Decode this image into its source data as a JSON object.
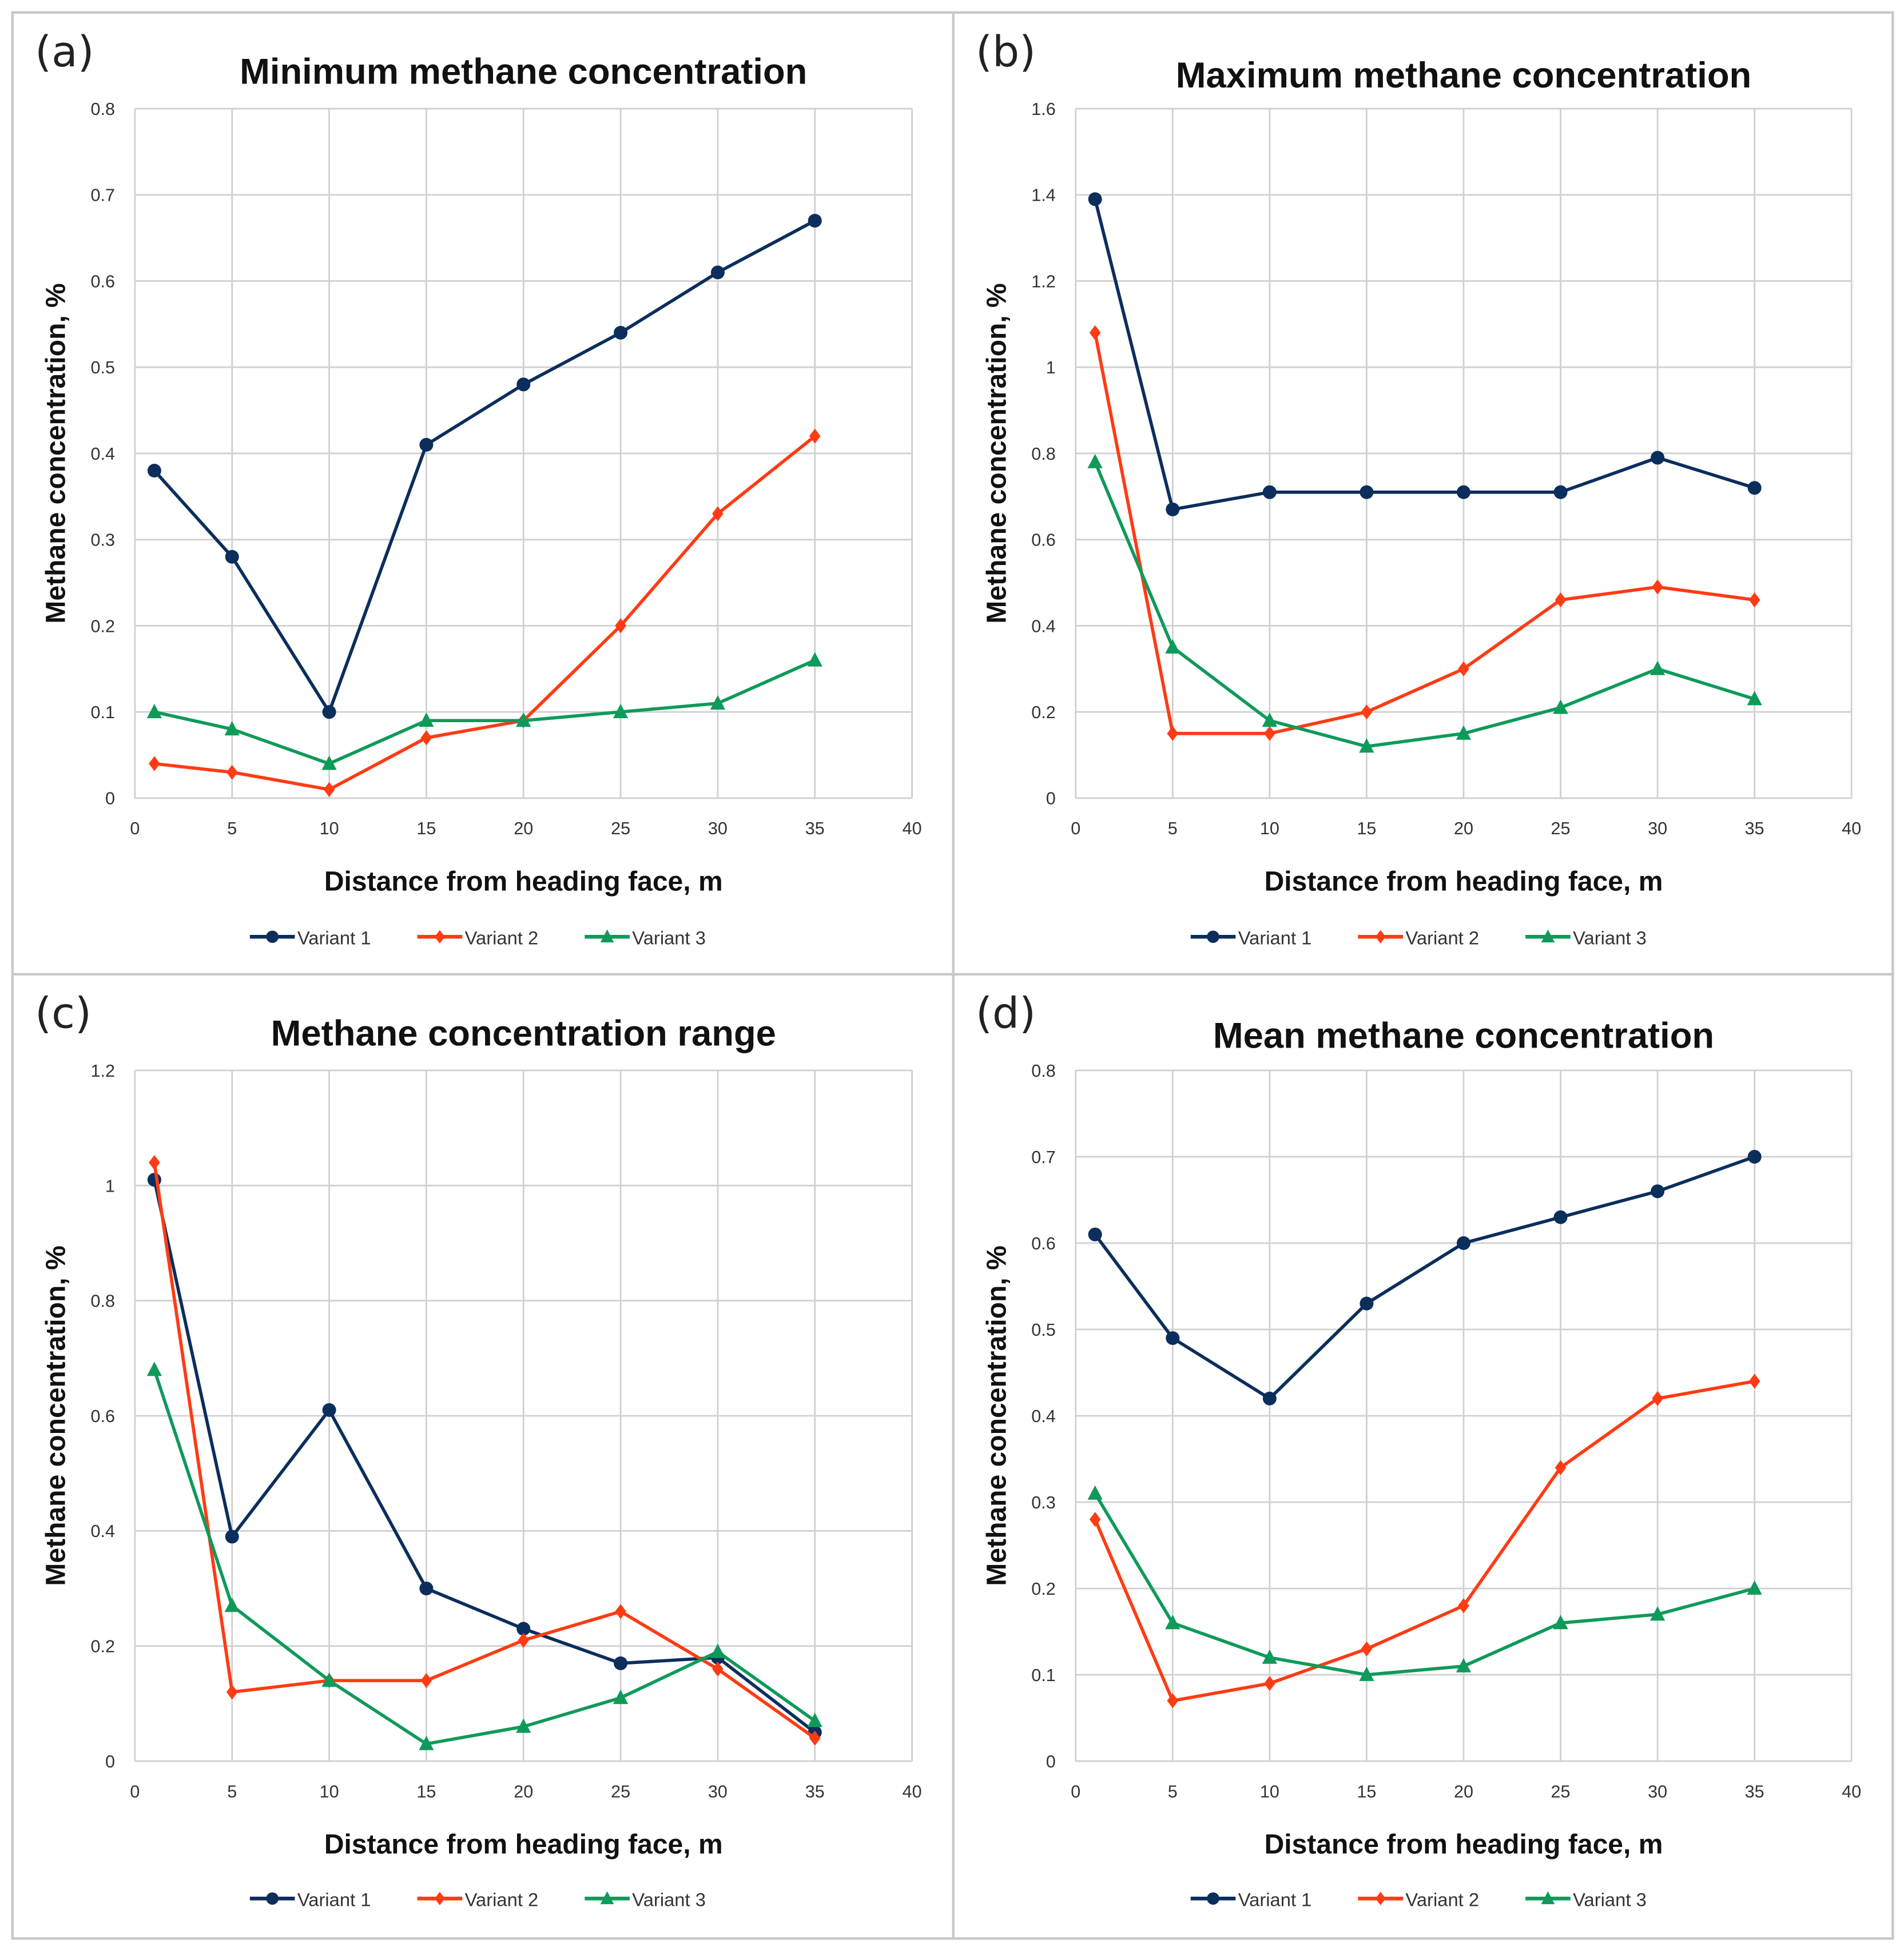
{
  "colors": {
    "Variant 1": "#0b2e5c",
    "Variant 2": "#ff3b14",
    "Variant 3": "#0f9a5a",
    "grid": "#d0d0d0",
    "border": "#c8c8c8"
  },
  "chart_data": [
    {
      "panel_label": "(a)",
      "type": "line",
      "title": "Minimum methane concentration",
      "xlabel": "Distance from heading face, m",
      "ylabel": "Methane concentration, %",
      "xlim": [
        0,
        40
      ],
      "ylim": [
        0,
        0.8
      ],
      "xticks": [
        "0",
        "5",
        "10",
        "15",
        "20",
        "25",
        "30",
        "35",
        "40"
      ],
      "yticks": [
        "0",
        "0.1",
        "0.2",
        "0.3",
        "0.4",
        "0.5",
        "0.6",
        "0.7",
        "0.8"
      ],
      "x": [
        1,
        5,
        10,
        15,
        20,
        25,
        30,
        35
      ],
      "grid": true,
      "legend": "bottom",
      "series": [
        {
          "name": "Variant 1",
          "marker": "circle",
          "values": [
            0.38,
            0.28,
            0.1,
            0.41,
            0.48,
            0.54,
            0.61,
            0.67
          ]
        },
        {
          "name": "Variant 2",
          "marker": "diamond",
          "values": [
            0.04,
            0.03,
            0.01,
            0.07,
            0.09,
            0.2,
            0.33,
            0.42
          ]
        },
        {
          "name": "Variant 3",
          "marker": "triangle",
          "values": [
            0.1,
            0.08,
            0.04,
            0.09,
            0.09,
            0.1,
            0.11,
            0.16
          ]
        }
      ]
    },
    {
      "panel_label": "(b)",
      "type": "line",
      "title": "Maximum methane concentration",
      "xlabel": "Distance from heading face, m",
      "ylabel": "Methane concentration, %",
      "xlim": [
        0,
        40
      ],
      "ylim": [
        0,
        1.6
      ],
      "xticks": [
        "0",
        "5",
        "10",
        "15",
        "20",
        "25",
        "30",
        "35",
        "40"
      ],
      "yticks": [
        "0",
        "0.2",
        "0.4",
        "0.6",
        "0.8",
        "1",
        "1.2",
        "1.4",
        "1.6"
      ],
      "x": [
        1,
        5,
        10,
        15,
        20,
        25,
        30,
        35
      ],
      "grid": true,
      "legend": "bottom",
      "series": [
        {
          "name": "Variant 1",
          "marker": "circle",
          "values": [
            1.39,
            0.67,
            0.71,
            0.71,
            0.71,
            0.71,
            0.79,
            0.72
          ]
        },
        {
          "name": "Variant 2",
          "marker": "diamond",
          "values": [
            1.08,
            0.15,
            0.15,
            0.2,
            0.3,
            0.46,
            0.49,
            0.46
          ]
        },
        {
          "name": "Variant 3",
          "marker": "triangle",
          "values": [
            0.78,
            0.35,
            0.18,
            0.12,
            0.15,
            0.21,
            0.3,
            0.23
          ]
        }
      ]
    },
    {
      "panel_label": "(c)",
      "type": "line",
      "title": "Methane concentration range",
      "xlabel": "Distance from heading face, m",
      "ylabel": "Methane concentration, %",
      "xlim": [
        0,
        40
      ],
      "ylim": [
        0,
        1.2
      ],
      "xticks": [
        "0",
        "5",
        "10",
        "15",
        "20",
        "25",
        "30",
        "35",
        "40"
      ],
      "yticks": [
        "0",
        "0.2",
        "0.4",
        "0.6",
        "0.8",
        "1",
        "1.2"
      ],
      "x": [
        1,
        5,
        10,
        15,
        20,
        25,
        30,
        35
      ],
      "grid": true,
      "legend": "bottom",
      "series": [
        {
          "name": "Variant 1",
          "marker": "circle",
          "values": [
            1.01,
            0.39,
            0.61,
            0.3,
            0.23,
            0.17,
            0.18,
            0.05
          ]
        },
        {
          "name": "Variant 2",
          "marker": "diamond",
          "values": [
            1.04,
            0.12,
            0.14,
            0.14,
            0.21,
            0.26,
            0.16,
            0.04
          ]
        },
        {
          "name": "Variant 3",
          "marker": "triangle",
          "values": [
            0.68,
            0.27,
            0.14,
            0.03,
            0.06,
            0.11,
            0.19,
            0.07
          ]
        }
      ]
    },
    {
      "panel_label": "(d)",
      "type": "line",
      "title": "Mean methane concentration",
      "xlabel": "Distance from heading face, m",
      "ylabel": "Methane concentration, %",
      "xlim": [
        0,
        40
      ],
      "ylim": [
        0,
        0.8
      ],
      "xticks": [
        "0",
        "5",
        "10",
        "15",
        "20",
        "25",
        "30",
        "35",
        "40"
      ],
      "yticks": [
        "0",
        "0.1",
        "0.2",
        "0.3",
        "0.4",
        "0.5",
        "0.6",
        "0.7",
        "0.8"
      ],
      "x": [
        1,
        5,
        10,
        15,
        20,
        25,
        30,
        35
      ],
      "grid": true,
      "legend": "bottom",
      "series": [
        {
          "name": "Variant 1",
          "marker": "circle",
          "values": [
            0.61,
            0.49,
            0.42,
            0.53,
            0.6,
            0.63,
            0.66,
            0.7
          ]
        },
        {
          "name": "Variant 2",
          "marker": "diamond",
          "values": [
            0.28,
            0.07,
            0.09,
            0.13,
            0.18,
            0.34,
            0.42,
            0.44
          ]
        },
        {
          "name": "Variant 3",
          "marker": "triangle",
          "values": [
            0.31,
            0.16,
            0.12,
            0.1,
            0.11,
            0.16,
            0.17,
            0.2
          ]
        }
      ]
    }
  ]
}
